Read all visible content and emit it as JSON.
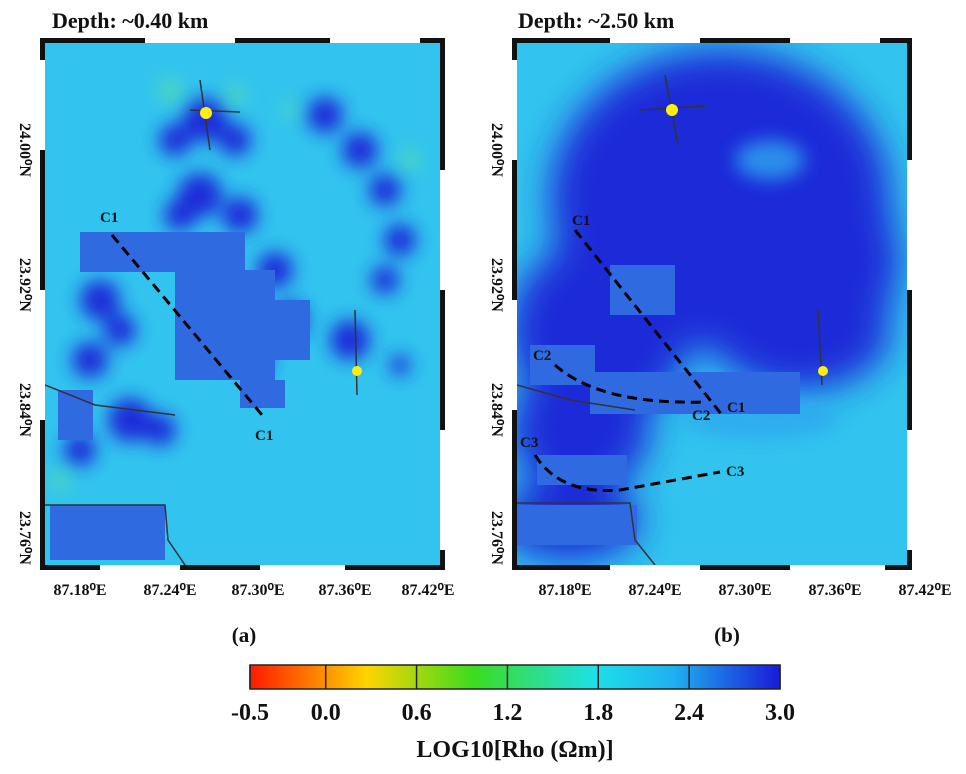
{
  "panels": [
    {
      "title": "Depth: ~0.40 km",
      "caption": "(a)",
      "lon_labels": [
        "87.18⁰E",
        "87.24⁰E",
        "87.30⁰E",
        "87.36⁰E",
        "87.42⁰E"
      ],
      "lat_labels": [
        "24.00⁰N",
        "23.92⁰N",
        "23.84⁰N",
        "23.76⁰N"
      ],
      "profiles": [
        "C1",
        "C1"
      ]
    },
    {
      "title": "Depth: ~2.50 km",
      "caption": "(b)",
      "lon_labels": [
        "87.18⁰E",
        "87.24⁰E",
        "87.30⁰E",
        "87.36⁰E",
        "87.42⁰E"
      ],
      "lat_labels": [
        "24.00⁰N",
        "23.92⁰N",
        "23.84⁰N",
        "23.76⁰N"
      ],
      "profiles": [
        "C1",
        "C1",
        "C2",
        "C2",
        "C3",
        "C3"
      ]
    }
  ],
  "colorbar": {
    "label": "LOG10[Rho (Ωm)]",
    "lim": [
      -0.5,
      {
        "value": 3.0,
        "label": "3.0"
      }
    ],
    "ticks": [
      -0.5,
      {
        "value": 0,
        "label": "0.0"
      },
      0.6,
      1.2,
      1.8,
      2.4,
      {
        "value": 3.0,
        "label": "3.0"
      }
    ]
  }
}
